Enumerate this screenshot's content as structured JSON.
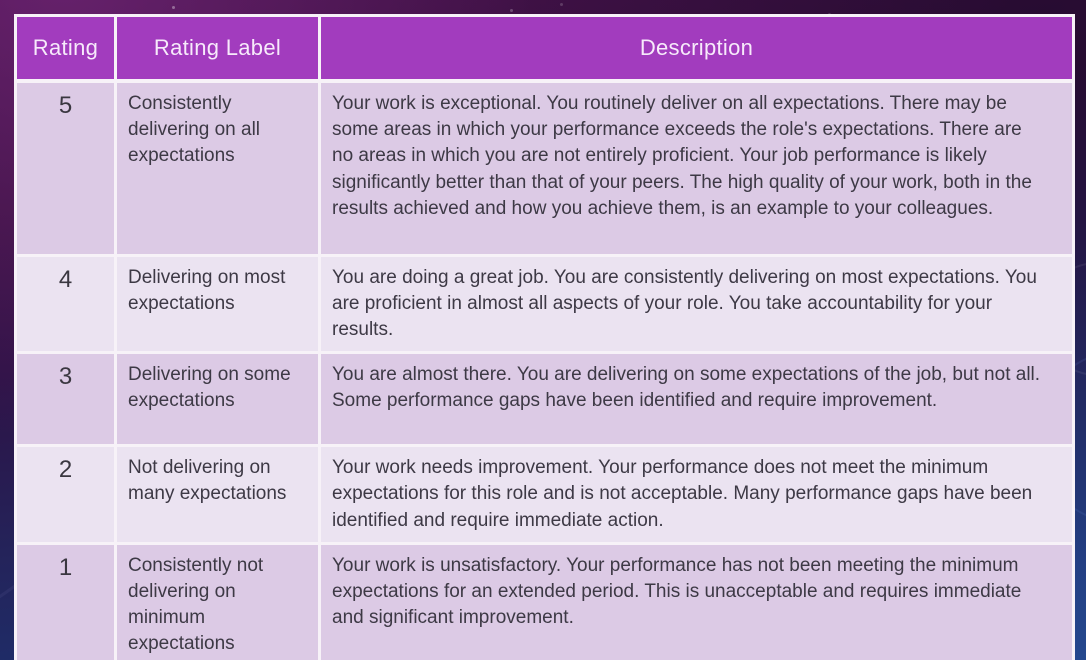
{
  "table": {
    "columns": [
      "Rating",
      "Rating Label",
      "Description"
    ],
    "rows": [
      {
        "rating": "5",
        "label": "Consistently delivering on all expectations",
        "description": "Your work is exceptional. You routinely deliver on all expectations. There may be some areas in which your performance exceeds the role's expectations. There are no areas in which you are not entirely proficient. Your job performance is likely significantly better than that of your peers. The high quality of your work, both in the results achieved and how you achieve them, is an example to your colleagues."
      },
      {
        "rating": "4",
        "label": "Delivering on most expectations",
        "description": "You are doing a great job.  You are consistently delivering on most expectations.  You are proficient in almost all aspects of your role.  You take accountability for your results."
      },
      {
        "rating": "3",
        "label": "Delivering on some expectations",
        "description": "You are almost there. You are delivering on some expectations of the job, but not all. Some performance gaps have been identified and require improvement."
      },
      {
        "rating": "2",
        "label": "Not delivering on many expectations",
        "description": "Your work needs improvement.  Your performance does not meet the minimum expectations for this role and is not acceptable. Many performance gaps have been identified and require immediate action."
      },
      {
        "rating": "1",
        "label": "Consistently not delivering on minimum expectations",
        "description": "Your work is unsatisfactory.  Your performance has not been meeting the minimum expectations for an extended period.  This is unacceptable and requires immediate and significant improvement."
      }
    ]
  },
  "colors": {
    "header_bg": "#a23cbe",
    "header_text": "#f7eafb",
    "row_odd_bg": "#dccae5",
    "row_even_bg": "#ebe3f1",
    "cell_border": "#f7f2f8",
    "body_text": "#3d3945",
    "background_top": "#44124a",
    "background_bottom": "#1f3a77"
  }
}
